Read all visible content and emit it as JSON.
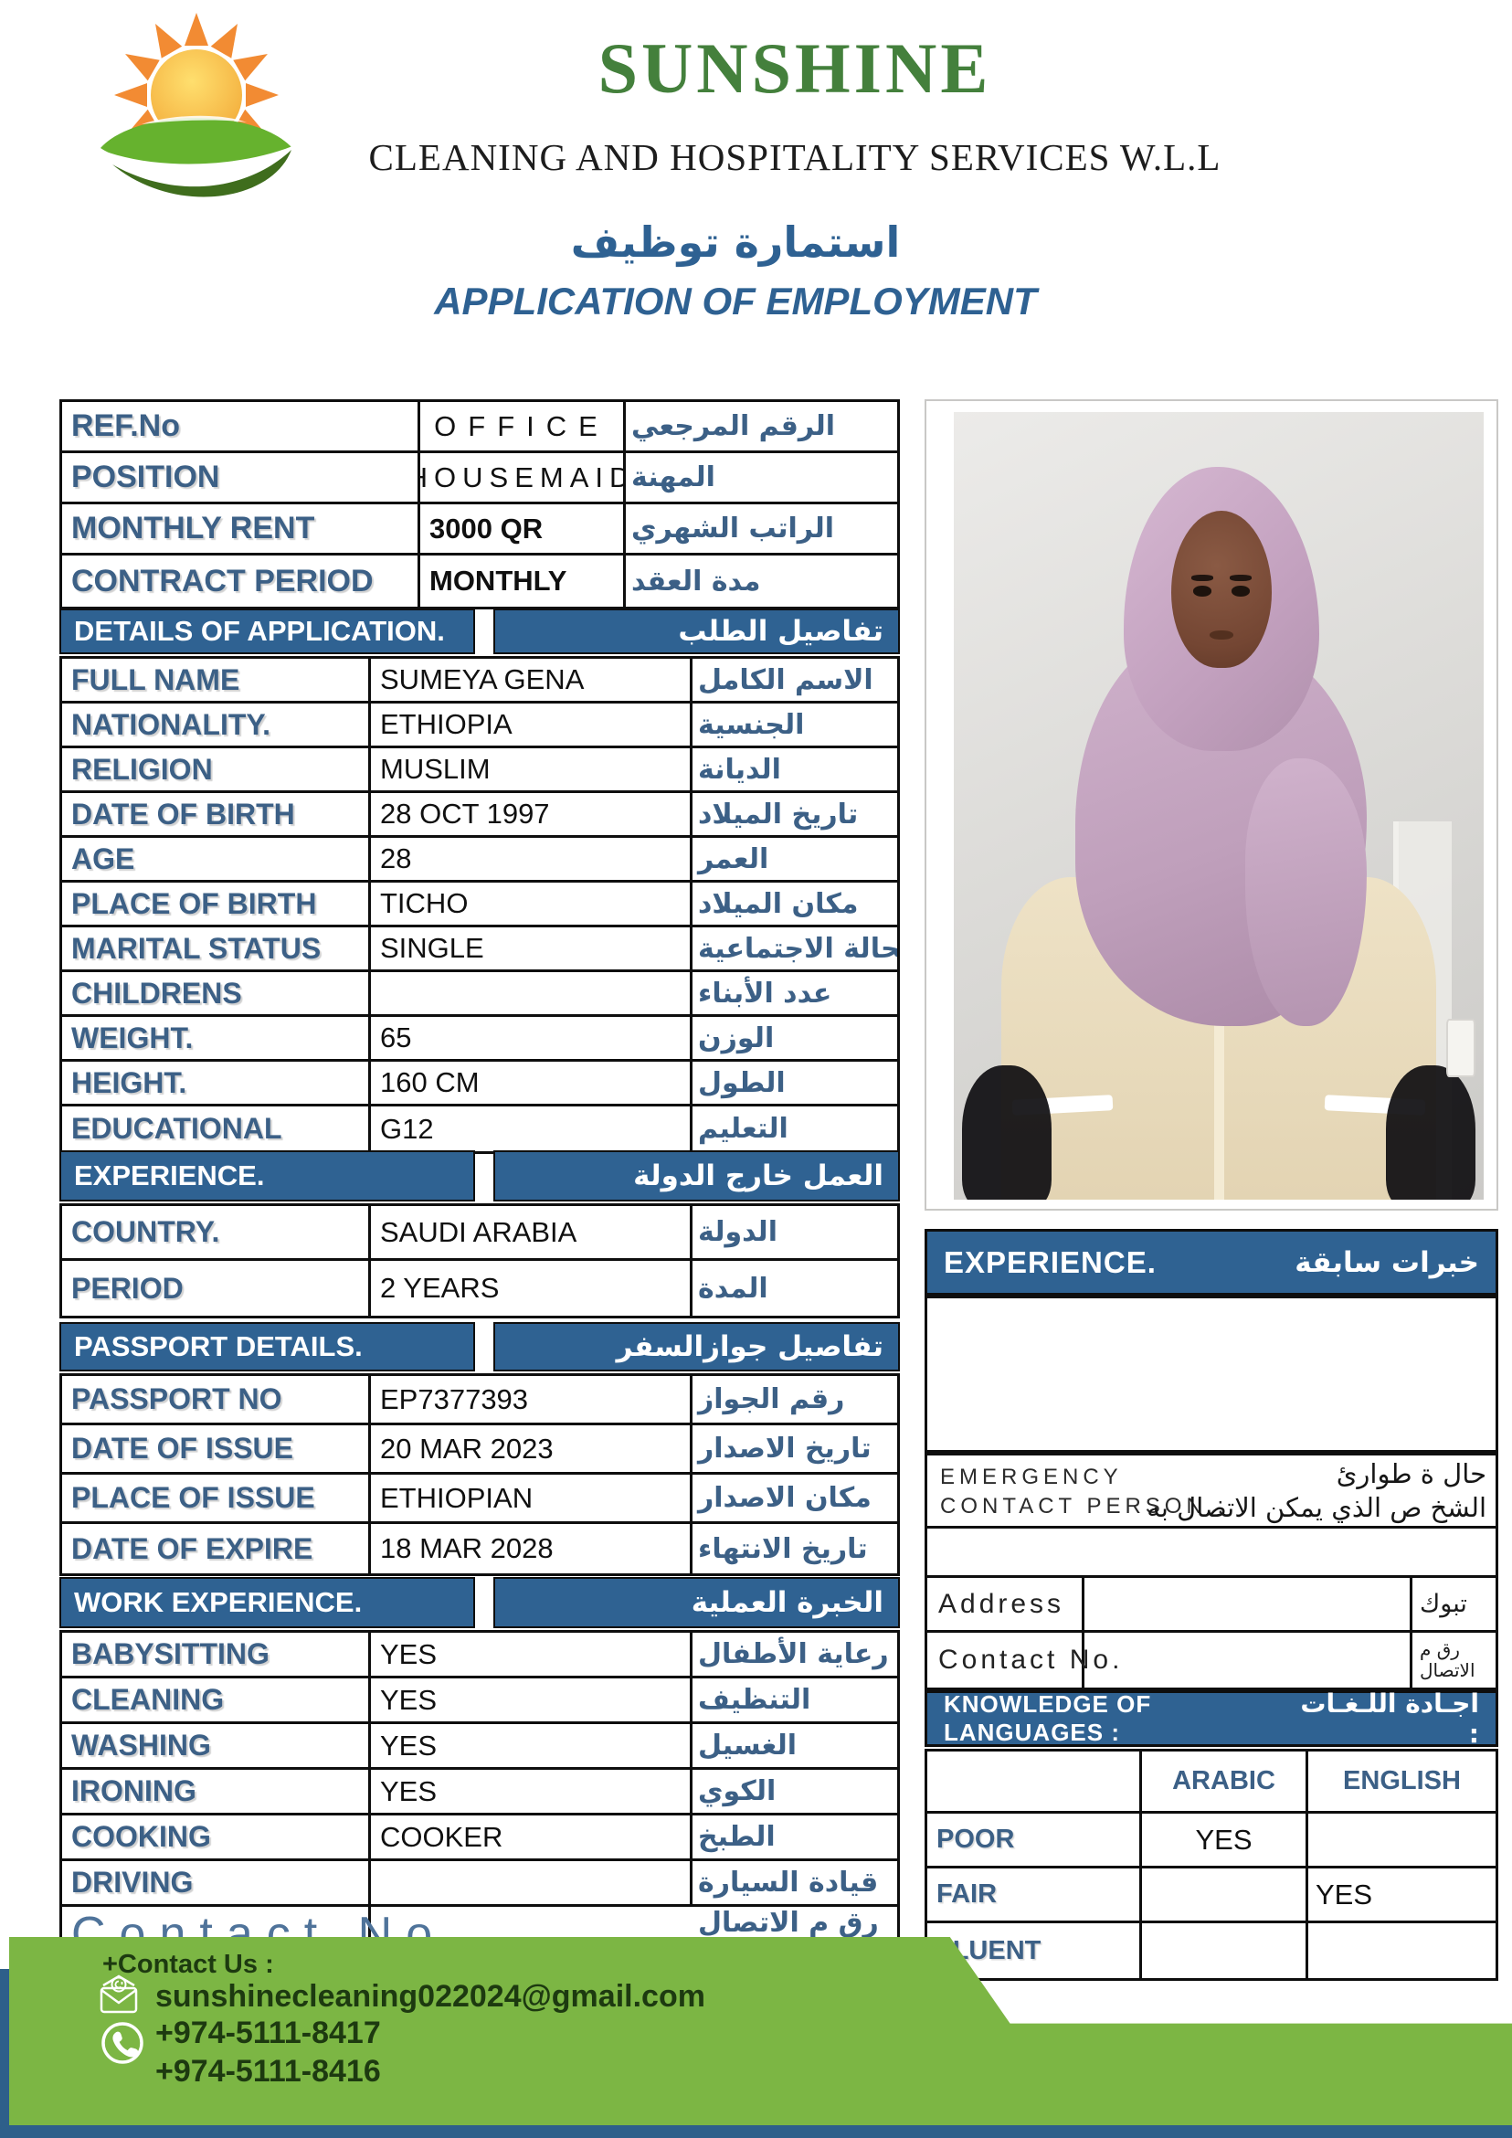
{
  "brand": {
    "name": "SUNSHINE",
    "tagline": "CLEANING AND HOSPITALITY SERVICES W.L.L",
    "logo": "sun-leaf-logo"
  },
  "form_title": {
    "arabic": "استمارة توظيف",
    "english": "APPLICATION OF EMPLOYMENT"
  },
  "top_table": {
    "rows": [
      {
        "label": "REF.No",
        "value": "OFFICE",
        "arabic": "الرقم المرجعي",
        "value_class": "v-office"
      },
      {
        "label": "POSITION",
        "value": "HOUSEMAID",
        "arabic": "المهنة",
        "value_class": "v-housemaid"
      },
      {
        "label": "MONTHLY RENT",
        "value": "3000 QR",
        "arabic": "الراتب الشهري"
      },
      {
        "label": "CONTRACT PERIOD",
        "value": "MONTHLY",
        "arabic": "مدة العقد"
      }
    ]
  },
  "sections": {
    "details": {
      "header_en": "DETAILS OF APPLICATION.",
      "header_ar": "تفاصيل الطلب",
      "rows": [
        {
          "label": "FULL NAME",
          "value": "SUMEYA GENA",
          "arabic": "الاسم الكامل"
        },
        {
          "label": "NATIONALITY.",
          "value": "ETHIOPIA",
          "arabic": "الجنسية"
        },
        {
          "label": "RELIGION",
          "value": "MUSLIM",
          "arabic": "الديانة"
        },
        {
          "label": "DATE OF BIRTH",
          "value": "28 OCT 1997",
          "arabic": "تاريخ الميلاد"
        },
        {
          "label": "AGE",
          "value": "28",
          "arabic": "العمر"
        },
        {
          "label": "PLACE OF BIRTH",
          "value": "TICHO",
          "arabic": "مكان الميلاد"
        },
        {
          "label": "MARITAL STATUS",
          "value": "SINGLE",
          "arabic": "الحالة الاجتماعية"
        },
        {
          "label": "CHILDRENS",
          "value": "",
          "arabic": "عدد الأبناء"
        },
        {
          "label": "WEIGHT.",
          "value": "65",
          "arabic": "الوزن"
        },
        {
          "label": "HEIGHT.",
          "value": "160 CM",
          "arabic": "الطول"
        },
        {
          "label": "EDUCATIONAL",
          "value": "G12",
          "arabic": "التعليم"
        }
      ]
    },
    "experience": {
      "header_en": "EXPERIENCE.",
      "header_ar": "العمل خارج الدولة",
      "rows": [
        {
          "label": "COUNTRY.",
          "value": "SAUDI ARABIA",
          "arabic": "الدولة"
        },
        {
          "label": "PERIOD",
          "value": "2 YEARS",
          "arabic": "المدة"
        }
      ]
    },
    "passport": {
      "header_en": "PASSPORT DETAILS.",
      "header_ar": "تفاصيل جوازالسفر",
      "rows": [
        {
          "label": "PASSPORT NO",
          "value": "EP7377393",
          "arabic": "رقم الجواز"
        },
        {
          "label": "DATE OF ISSUE",
          "value": "20 MAR 2023",
          "arabic": "تاريخ الاصدار"
        },
        {
          "label": "PLACE OF ISSUE",
          "value": "ETHIOPIAN",
          "arabic": "مكان الاصدار"
        },
        {
          "label": "DATE OF EXPIRE",
          "value": "18 MAR 2028",
          "arabic": "تاريخ الانتهاء"
        }
      ]
    },
    "work": {
      "header_en": "WORK EXPERIENCE.",
      "header_ar": "الخبرة العملية",
      "rows": [
        {
          "label": "BABYSITTING",
          "value": "YES",
          "arabic": "رعاية الأطفال"
        },
        {
          "label": "CLEANING",
          "value": "YES",
          "arabic": "التنظيف"
        },
        {
          "label": "WASHING",
          "value": "YES",
          "arabic": "الغسيل"
        },
        {
          "label": "IRONING",
          "value": "YES",
          "arabic": "الكوي"
        },
        {
          "label": "COOKING",
          "value": "COOKER",
          "arabic": "الطبخ"
        },
        {
          "label": "DRIVING",
          "value": "",
          "arabic": "قيادة السيارة"
        },
        {
          "label": "Contact No.",
          "value": "",
          "arabic": "رق م الاتصال",
          "label_class": "contact-big",
          "row_class": "tall"
        }
      ]
    }
  },
  "right_panel": {
    "photo": {
      "description": "Applicant portrait: woman wearing a pink hijab and cream uniform with black lace cuffs, grey wall background"
    },
    "experience_box": {
      "header_en": "EXPERIENCE.",
      "header_ar": "خبرات سابقة"
    },
    "emergency": {
      "en_line1": "EMERGENCY",
      "en_line2": "CONTACT PERSON :",
      "ar_line1": "حال ة طوارئ",
      "ar_line2": "الشخ ص الذي يمكن الاتصال به"
    },
    "address_row": {
      "label": "Address",
      "arabic": "تبوك"
    },
    "contact_row": {
      "label": "Contact No.",
      "arabic": "رق م الاتصال"
    },
    "languages": {
      "header_en": "KNOWLEDGE OF LANGUAGES :",
      "header_ar": "اجـادة اللـغـات :",
      "columns": [
        "ARABIC",
        "ENGLISH"
      ],
      "rows": [
        {
          "label": "POOR",
          "arabic": "YES",
          "english": ""
        },
        {
          "label": "FAIR",
          "arabic": "",
          "english": "YES"
        },
        {
          "label": "FLUENT",
          "arabic": "",
          "english": ""
        }
      ]
    }
  },
  "footer": {
    "contact_us": "+Contact Us :",
    "email": "sunshinecleaning022024@gmail.com",
    "phone1": "+974-5111-8417",
    "phone2": "+974-5111-8416",
    "icons": {
      "email": "envelope-at-icon",
      "phone": "phone-circle-icon"
    }
  },
  "colors": {
    "header_blue": "#2f6292",
    "label_blue": "#3c6086",
    "title_blue": "#2e6192",
    "logo_green": "#44803c",
    "footer_green": "#7cb644",
    "footer_blue": "#2e5f8a",
    "border_black": "#0e0e0e"
  }
}
